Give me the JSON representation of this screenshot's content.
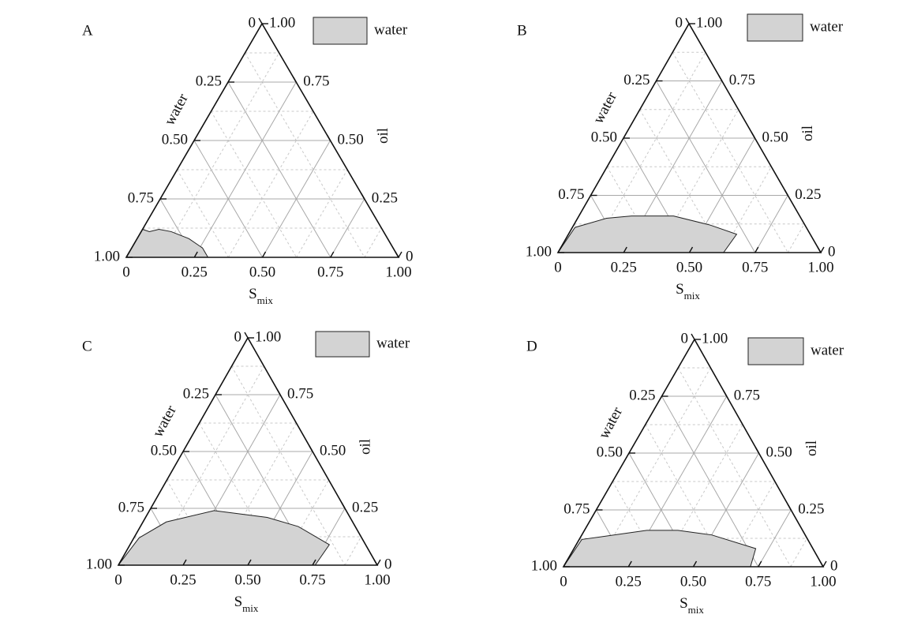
{
  "chart_data": [
    {
      "type": "ternary",
      "label": "A",
      "bottom_axis": {
        "label": "S",
        "label_subscript": "mix",
        "lim": [
          0,
          1
        ],
        "ticks": [
          0,
          0.25,
          {
            "value": 0.5,
            "label": "0.50"
          },
          0.75,
          {
            "value": 1,
            "label": "1.00"
          }
        ]
      },
      "left_axis": {
        "label": "water",
        "lim": [
          0,
          1
        ],
        "ticks": [
          0,
          0.25,
          {
            "value": 0.5,
            "label": "0.50"
          },
          0.75,
          {
            "value": 1,
            "label": "1.00"
          }
        ]
      },
      "right_axis": {
        "label": "oil",
        "lim": [
          0,
          1
        ],
        "ticks": [
          0,
          0.25,
          {
            "value": 0.5,
            "label": "0.50"
          },
          0.75,
          {
            "value": 1,
            "label": "1.00"
          }
        ]
      },
      "grid": true,
      "series": [
        {
          "name": "water",
          "color": "#d3d3d3",
          "smix": [
            0,
            0.3,
            0.26,
            0.19,
            0.11,
            0.06,
            0.03,
            0.0
          ],
          "oil": [
            0,
            0,
            0.04,
            0.08,
            0.11,
            0.12,
            0.11,
            0.12
          ]
        }
      ]
    },
    {
      "type": "ternary",
      "label": "B",
      "bottom_axis": {
        "label": "S",
        "label_subscript": "mix",
        "lim": [
          0,
          1
        ],
        "ticks": [
          0,
          0.25,
          {
            "value": 0.5,
            "label": "0.50"
          },
          0.75,
          {
            "value": 1,
            "label": "1.00"
          }
        ]
      },
      "left_axis": {
        "label": "water",
        "lim": [
          0,
          1
        ],
        "ticks": [
          0,
          0.25,
          {
            "value": 0.5,
            "label": "0.50"
          },
          0.75,
          {
            "value": 1,
            "label": "1.00"
          }
        ]
      },
      "right_axis": {
        "label": "oil",
        "lim": [
          0,
          1
        ],
        "ticks": [
          0,
          0.25,
          {
            "value": 0.5,
            "label": "0.50"
          },
          0.75,
          {
            "value": 1,
            "label": "1.00"
          }
        ]
      },
      "grid": true,
      "series": [
        {
          "name": "water",
          "color": "#d3d3d3",
          "smix": [
            0,
            0.63,
            0.64,
            0.52,
            0.36,
            0.2,
            0.11,
            0.01
          ],
          "oil": [
            0,
            0,
            0.08,
            0.12,
            0.16,
            0.16,
            0.15,
            0.11
          ]
        }
      ]
    },
    {
      "type": "ternary",
      "label": "C",
      "bottom_axis": {
        "label": "S",
        "label_subscript": "mix",
        "lim": [
          0,
          1
        ],
        "ticks": [
          0,
          0.25,
          {
            "value": 0.5,
            "label": "0.50"
          },
          0.75,
          {
            "value": 1,
            "label": "1.00"
          }
        ]
      },
      "left_axis": {
        "label": "water",
        "lim": [
          0,
          1
        ],
        "ticks": [
          0,
          0.25,
          {
            "value": 0.5,
            "label": "0.50"
          },
          0.75,
          {
            "value": 1,
            "label": "1.00"
          }
        ]
      },
      "right_axis": {
        "label": "oil",
        "lim": [
          0,
          1
        ],
        "ticks": [
          0,
          0.25,
          {
            "value": 0.5,
            "label": "0.50"
          },
          0.75,
          {
            "value": 1,
            "label": "1.00"
          }
        ]
      },
      "grid": true,
      "series": [
        {
          "name": "water",
          "color": "#d3d3d3",
          "smix": [
            0,
            0.76,
            0.77,
            0.61,
            0.47,
            0.25,
            0.09,
            0.02
          ],
          "oil": [
            0,
            0,
            0.09,
            0.17,
            0.21,
            0.24,
            0.19,
            0.12
          ]
        }
      ]
    },
    {
      "type": "ternary",
      "label": "D",
      "bottom_axis": {
        "label": "S",
        "label_subscript": "mix",
        "lim": [
          0,
          1
        ],
        "ticks": [
          0,
          0.25,
          {
            "value": 0.5,
            "label": "0.50"
          },
          0.75,
          {
            "value": 1,
            "label": "1.00"
          }
        ]
      },
      "left_axis": {
        "label": "water",
        "lim": [
          0,
          1
        ],
        "ticks": [
          0,
          0.25,
          {
            "value": 0.5,
            "label": "0.50"
          },
          0.75,
          {
            "value": 1,
            "label": "1.00"
          }
        ]
      },
      "right_axis": {
        "label": "oil",
        "lim": [
          0,
          1
        ],
        "ticks": [
          0,
          0.25,
          {
            "value": 0.5,
            "label": "0.50"
          },
          0.75,
          {
            "value": 1,
            "label": "1.00"
          }
        ]
      },
      "grid": true,
      "series": [
        {
          "name": "water",
          "color": "#d3d3d3",
          "smix": [
            0,
            0.72,
            0.7,
            0.5,
            0.36,
            0.24,
            0.01
          ],
          "oil": [
            0,
            0,
            0.08,
            0.14,
            0.16,
            0.16,
            0.12
          ]
        }
      ]
    }
  ]
}
